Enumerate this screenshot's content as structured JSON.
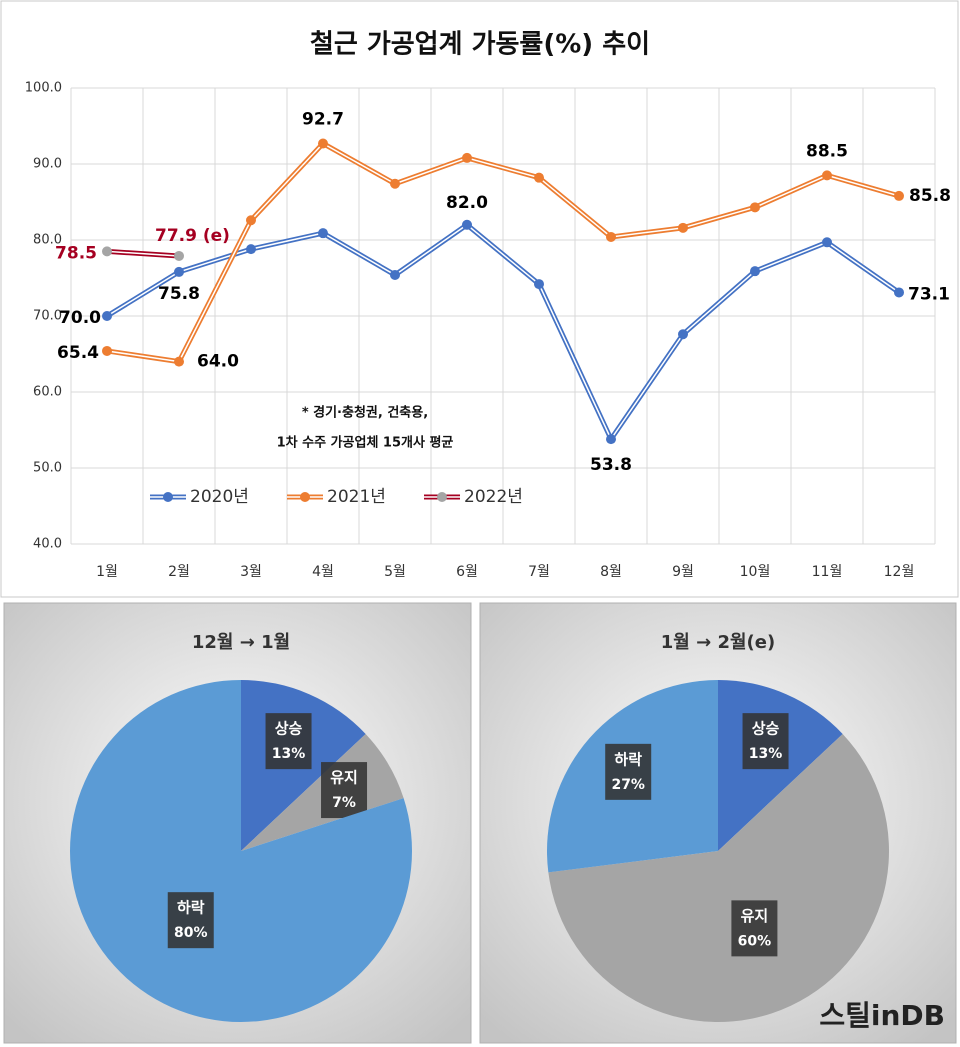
{
  "logo": "스틸inDB",
  "chart_data": [
    {
      "type": "line",
      "title": "철근 가공업계 가동률(%) 추이",
      "annotation": [
        "* 경기·충청권, 건축용,",
        "1차 수주 가공업체 15개사 평균"
      ],
      "categories": [
        "1월",
        "2월",
        "3월",
        "4월",
        "5월",
        "6월",
        "7월",
        "8월",
        "9월",
        "10월",
        "11월",
        "12월"
      ],
      "ylim": [
        40,
        100
      ],
      "yticks": [
        {
          "value": 40,
          "label": "40.0"
        },
        {
          "value": 50,
          "label": "50.0"
        },
        {
          "value": 60,
          "label": "60.0"
        },
        {
          "value": 70,
          "label": "70.0"
        },
        {
          "value": 80,
          "label": "80.0"
        },
        {
          "value": 90,
          "label": "90.0"
        },
        {
          "value": 100,
          "label": "100.0"
        }
      ],
      "grid": true,
      "legend": "bottom-left",
      "series": [
        {
          "name": "2020년",
          "color": "#4472c4",
          "marker_color": "#4472c4",
          "label_color": "#000000",
          "values": [
            70.0,
            75.8,
            78.8,
            80.9,
            75.4,
            82.0,
            74.2,
            53.8,
            67.6,
            75.9,
            79.7,
            73.1
          ],
          "value_labels": [
            "70.0",
            "75.8",
            null,
            null,
            null,
            "82.0",
            null,
            "53.8",
            null,
            null,
            null,
            "73.1"
          ]
        },
        {
          "name": "2021년",
          "color": "#ed7d31",
          "marker_color": "#ed7d31",
          "label_color": "#000000",
          "values": [
            65.4,
            64.0,
            82.6,
            92.7,
            87.4,
            90.8,
            88.2,
            80.4,
            81.6,
            84.3,
            88.5,
            85.8
          ],
          "value_labels": [
            "65.4",
            "64.0",
            null,
            "92.7",
            null,
            null,
            null,
            null,
            null,
            null,
            "88.5",
            "85.8"
          ]
        },
        {
          "name": "2022년",
          "color": "#a50021",
          "marker_color": "#a5a5a5",
          "label_color": "#a50021",
          "values": [
            78.5,
            77.9,
            null,
            null,
            null,
            null,
            null,
            null,
            null,
            null,
            null,
            null
          ],
          "value_labels": [
            "78.5",
            "77.9 (e)",
            null,
            null,
            null,
            null,
            null,
            null,
            null,
            null,
            null,
            null
          ]
        }
      ]
    },
    {
      "type": "pie",
      "title": "12월 → 1월",
      "categories": [
        "상승",
        "유지",
        "하락"
      ],
      "values": [
        13,
        7,
        80
      ],
      "value_labels": [
        "13%",
        "7%",
        "80%"
      ],
      "colors": [
        "#4472c4",
        "#a5a5a5",
        "#5b9bd5"
      ]
    },
    {
      "type": "pie",
      "title": "1월 → 2월(e)",
      "categories": [
        "상승",
        "유지",
        "하락"
      ],
      "values": [
        13,
        60,
        27
      ],
      "value_labels": [
        "13%",
        "60%",
        "27%"
      ],
      "colors": [
        "#4472c4",
        "#a5a5a5",
        "#5b9bd5"
      ]
    }
  ]
}
